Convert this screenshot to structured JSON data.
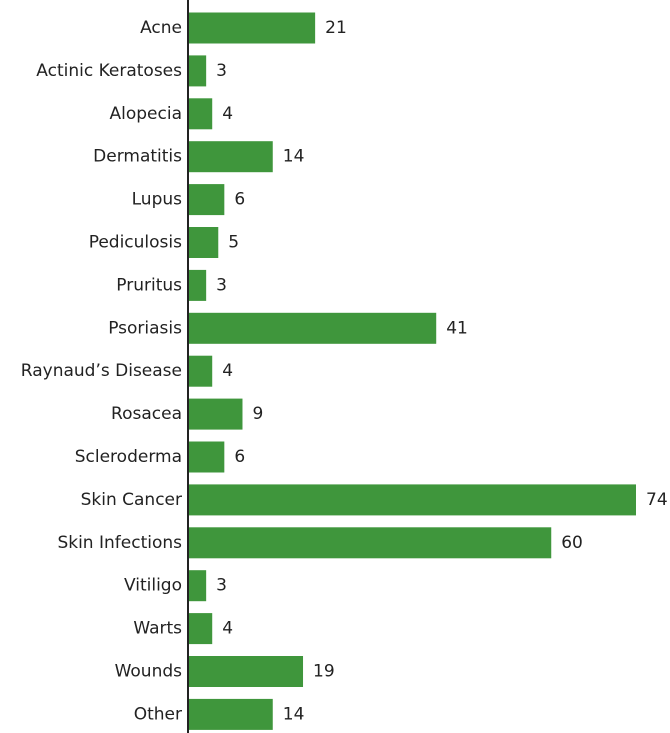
{
  "chart_data": {
    "type": "bar",
    "orientation": "horizontal",
    "categories": [
      "Acne",
      "Actinic Keratoses",
      "Alopecia",
      "Dermatitis",
      "Lupus",
      "Pediculosis",
      "Pruritus",
      "Psoriasis",
      "Raynaud’s Disease",
      "Rosacea",
      "Scleroderma",
      "Skin Cancer",
      "Skin Infections",
      "Vitiligo",
      "Warts",
      "Wounds",
      "Other"
    ],
    "values": [
      21,
      3,
      4,
      14,
      6,
      5,
      3,
      41,
      4,
      9,
      6,
      74,
      60,
      3,
      4,
      19,
      14
    ],
    "data_labels": [
      "21",
      "3",
      "4",
      "14",
      "6",
      "5",
      "3",
      "41",
      "4",
      "9",
      "6",
      "74",
      "60",
      "3",
      "4",
      "19",
      "14"
    ],
    "xlim": [
      0,
      74
    ],
    "grid": false,
    "legend": "none",
    "colors": {
      "bar": "#3f963c",
      "axis": "#222222",
      "text": "#222222"
    }
  }
}
